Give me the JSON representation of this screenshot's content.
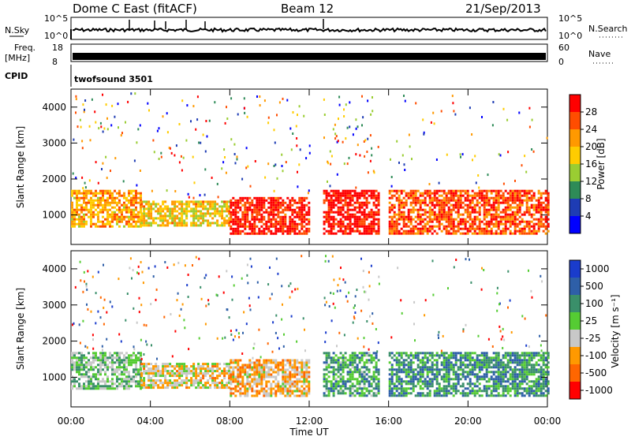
{
  "header": {
    "station": "Dome C East (fitACF)",
    "beam": "Beam 12",
    "date": "21/Sep/2013"
  },
  "strips": {
    "nsky_label": "N.Sky",
    "nsky_ticks": [
      "10^5",
      "10^0"
    ],
    "nsearch_label": "N.Search",
    "freq_label_1": "Freq.",
    "freq_label_2": "[MHz]",
    "freq_ticks": [
      "18",
      "8"
    ],
    "nave_label": "Nave",
    "nave_ticks": [
      "60",
      "0"
    ],
    "cpid_label": "CPID",
    "cpid_value": "twofsound 3501"
  },
  "power_panel": {
    "ylabel": "Slant Range [km]",
    "yticks": [
      "4000",
      "3000",
      "2000",
      "1000"
    ],
    "colorbar_label": "Power [dB]",
    "colorbar_ticks": [
      "28",
      "24",
      "20",
      "16",
      "12",
      "8",
      "4"
    ],
    "colorbar_colors": [
      "#ff0000",
      "#ff4d00",
      "#ff9900",
      "#ffcc00",
      "#9acd32",
      "#2e8b57",
      "#1e3cb4",
      "#0000ff"
    ]
  },
  "velocity_panel": {
    "ylabel": "Slant Range [km]",
    "yticks": [
      "4000",
      "3000",
      "2000",
      "1000"
    ],
    "colorbar_label": "Velocity [m s⁻¹]",
    "colorbar_ticks": [
      "1000",
      "500",
      "100",
      "25",
      "-25",
      "-100",
      "-500",
      "-1000"
    ],
    "colorbar_colors": [
      "#1a3ccc",
      "#2e5fa8",
      "#3a8f6a",
      "#55cc33",
      "#c8c8c8",
      "#ff9900",
      "#ff6600",
      "#ff0000"
    ]
  },
  "xaxis": {
    "label": "Time UT",
    "ticks": [
      "00:00",
      "04:00",
      "08:00",
      "12:00",
      "16:00",
      "20:00",
      "00:00"
    ]
  },
  "chart_data": [
    {
      "type": "heatmap",
      "title": "Dome C East (fitACF)",
      "subtitle": "Beam 12 21/Sep/2013",
      "xlabel": "Time UT",
      "ylabel": "Slant Range [km]",
      "quantity": "Power [dB]",
      "xlim": [
        "00:00",
        "24:00"
      ],
      "ylim": [
        180,
        4500
      ],
      "colorscale": [
        4,
        28
      ],
      "bands": [
        {
          "start_h": 0.0,
          "end_h": 3.5,
          "range_km": [
            700,
            1700
          ],
          "level_db": 20
        },
        {
          "start_h": 3.5,
          "end_h": 8.0,
          "range_km": [
            700,
            1400
          ],
          "level_db": 18
        },
        {
          "start_h": 8.0,
          "end_h": 12.0,
          "range_km": [
            500,
            1500
          ],
          "level_db": 26
        },
        {
          "start_h": 12.7,
          "end_h": 15.5,
          "range_km": [
            500,
            1700
          ],
          "level_db": 27
        },
        {
          "start_h": 16.0,
          "end_h": 24.0,
          "range_km": [
            500,
            1700
          ],
          "level_db": 24
        }
      ]
    },
    {
      "type": "heatmap",
      "xlabel": "Time UT",
      "ylabel": "Slant Range [km]",
      "quantity": "Velocity [m s-1]",
      "xlim": [
        "00:00",
        "24:00"
      ],
      "ylim": [
        180,
        4500
      ],
      "colorscale": [
        -1000,
        1000
      ],
      "bands": [
        {
          "start_h": 0.0,
          "end_h": 3.5,
          "range_km": [
            700,
            1700
          ],
          "level_ms": 100
        },
        {
          "start_h": 3.5,
          "end_h": 8.0,
          "range_km": [
            700,
            1400
          ],
          "level_ms": -200
        },
        {
          "start_h": 8.0,
          "end_h": 12.0,
          "range_km": [
            500,
            1500
          ],
          "level_ms": -300
        },
        {
          "start_h": 12.7,
          "end_h": 15.5,
          "range_km": [
            500,
            1700
          ],
          "level_ms": 300
        },
        {
          "start_h": 16.0,
          "end_h": 24.0,
          "range_km": [
            500,
            1700
          ],
          "level_ms": 400
        }
      ]
    }
  ]
}
